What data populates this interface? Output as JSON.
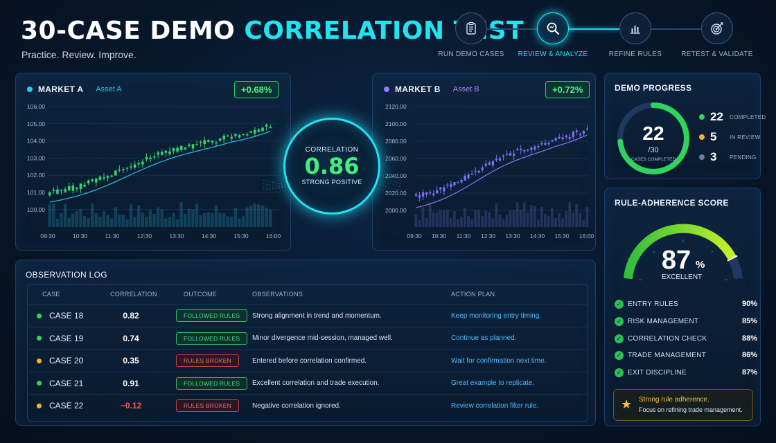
{
  "header": {
    "title_main": "30-CASE DEMO",
    "title_accent": "CORRELATION TEST",
    "subtitle": "Practice. Review. Improve."
  },
  "stepper": {
    "steps": [
      {
        "label": "RUN DEMO CASES",
        "icon": "clipboard-icon",
        "active": false
      },
      {
        "label": "REVIEW & ANALYZE",
        "icon": "magnifier-icon",
        "active": true
      },
      {
        "label": "REFINE RULES",
        "icon": "bar-chart-icon",
        "active": false
      },
      {
        "label": "RETEST & VALIDATE",
        "icon": "target-icon",
        "active": false
      }
    ]
  },
  "market_a": {
    "name": "MARKET A",
    "asset": "Asset A",
    "change": "+0.68%",
    "color": "#2fc8e6",
    "candle_color": "#34d36b",
    "y_ticks": [
      "106.00",
      "105.00",
      "104.00",
      "103.00",
      "102.00",
      "101.00",
      "100.00"
    ],
    "x_ticks": [
      "09:30",
      "10:30",
      "11:30",
      "12:30",
      "13:30",
      "14:30",
      "15:30",
      "16:00"
    ]
  },
  "market_b": {
    "name": "MARKET B",
    "asset": "Asset B",
    "change": "+0.72%",
    "color": "#8a7ff0",
    "candle_color": "#7d6cf2",
    "y_ticks": [
      "2120.00",
      "2100.00",
      "2080.00",
      "2060.00",
      "2040.00",
      "2020.00",
      "2000.00"
    ],
    "x_ticks": [
      "09:30",
      "10:30",
      "11:30",
      "12:30",
      "13:30",
      "14:30",
      "15:30",
      "16:00"
    ]
  },
  "correlation": {
    "label": "CORRELATION",
    "value": "0.86",
    "strength": "STRONG POSITIVE"
  },
  "demo_progress": {
    "title": "DEMO PROGRESS",
    "completed_value": "22",
    "total": "/30",
    "caption": "CASES COMPLETED",
    "fraction": 0.7333,
    "legend": [
      {
        "count": "22",
        "label": "COMPLETED",
        "color": "#31d65f"
      },
      {
        "count": "5",
        "label": "IN REVIEW",
        "color": "#f3b52c"
      },
      {
        "count": "3",
        "label": "PENDING",
        "color": "#6d7fa3"
      }
    ]
  },
  "rule_adherence": {
    "title": "RULE-ADHERENCE SCORE",
    "score": "87",
    "unit": "%",
    "rating": "EXCELLENT",
    "fraction": 0.87,
    "rules": [
      {
        "name": "ENTRY RULES",
        "pct": "90%"
      },
      {
        "name": "RISK MANAGEMENT",
        "pct": "85%"
      },
      {
        "name": "CORRELATION CHECK",
        "pct": "88%"
      },
      {
        "name": "TRADE MANAGEMENT",
        "pct": "86%"
      },
      {
        "name": "EXIT DISCIPLINE",
        "pct": "87%"
      }
    ],
    "callout_title": "Strong rule adherence.",
    "callout_text": "Focus on refining trade management."
  },
  "observation_log": {
    "title": "OBSERVATION LOG",
    "columns": [
      "CASE",
      "CORRELATION",
      "OUTCOME",
      "OBSERVATIONS",
      "ACTION PLAN"
    ],
    "rows": [
      {
        "case": "CASE 18",
        "dot": "#31d65f",
        "corr": "0.82",
        "corr_color": "#ffffff",
        "outcome": "FOLLOWED RULES",
        "ok": true,
        "obs": "Strong alignment in trend and momentum.",
        "action": "Keep monitoring entry timing."
      },
      {
        "case": "CASE 19",
        "dot": "#31d65f",
        "corr": "0.74",
        "corr_color": "#ffffff",
        "outcome": "FOLLOWED RULES",
        "ok": true,
        "obs": "Minor divergence mid-session, managed well.",
        "action": "Continue as planned."
      },
      {
        "case": "CASE 20",
        "dot": "#f3b52c",
        "corr": "0.35",
        "corr_color": "#ffffff",
        "outcome": "RULES BROKEN",
        "ok": false,
        "obs": "Entered before correlation confirmed.",
        "action": "Wait for confirmation next time."
      },
      {
        "case": "CASE 21",
        "dot": "#31d65f",
        "corr": "0.91",
        "corr_color": "#ffffff",
        "outcome": "FOLLOWED RULES",
        "ok": true,
        "obs": "Excellent correlation and trade execution.",
        "action": "Great example to replicate."
      },
      {
        "case": "CASE 22",
        "dot": "#f3b52c",
        "corr": "−0.12",
        "corr_color": "#ff5c55",
        "outcome": "RULES BROKEN",
        "ok": false,
        "obs": "Negative correlation ignored.",
        "action": "Review correlation filter rule."
      }
    ]
  }
}
